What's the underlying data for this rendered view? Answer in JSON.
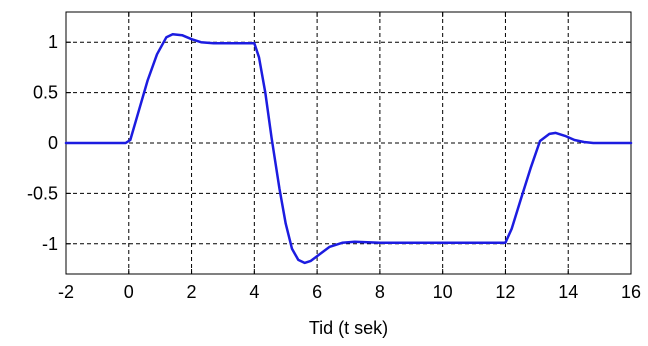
{
  "chart_data": {
    "type": "line",
    "title": "",
    "xlabel": "Tid  (t sek)",
    "ylabel": "",
    "xlim": [
      -2,
      16
    ],
    "ylim": [
      -1.3,
      1.3
    ],
    "grid": true,
    "xticks": [
      -2,
      0,
      2,
      4,
      6,
      8,
      10,
      12,
      14,
      16
    ],
    "yticks": [
      -1,
      -0.5,
      0,
      0.5,
      1
    ],
    "xtick_labels": [
      "-2",
      "0",
      "2",
      "4",
      "6",
      "8",
      "10",
      "12",
      "14",
      "16"
    ],
    "ytick_labels": [
      "-1",
      "-0.5",
      "0",
      "0.5",
      "1"
    ],
    "line_color": "#1c1ce0",
    "series": [
      {
        "x": [
          -2,
          -0.1,
          0.05,
          0.3,
          0.6,
          0.9,
          1.2,
          1.4,
          1.7,
          2.0,
          2.3,
          2.7,
          3.0,
          3.5,
          4.0,
          4.15,
          4.35,
          4.55,
          4.8,
          5.0,
          5.2,
          5.4,
          5.6,
          5.8,
          6.1,
          6.4,
          6.8,
          7.2,
          8,
          9,
          10,
          11,
          12.0,
          12.2,
          12.5,
          12.8,
          13.1,
          13.4,
          13.6,
          13.9,
          14.2,
          14.5,
          14.8,
          15.3,
          16
        ],
        "y": [
          0,
          0,
          0.03,
          0.3,
          0.62,
          0.88,
          1.05,
          1.08,
          1.07,
          1.03,
          1.0,
          0.99,
          0.99,
          0.99,
          0.99,
          0.85,
          0.5,
          0.05,
          -0.45,
          -0.8,
          -1.05,
          -1.16,
          -1.19,
          -1.17,
          -1.1,
          -1.03,
          -0.99,
          -0.98,
          -0.99,
          -0.99,
          -0.99,
          -0.99,
          -0.99,
          -0.85,
          -0.55,
          -0.25,
          0.02,
          0.09,
          0.1,
          0.07,
          0.03,
          0.01,
          0.0,
          0,
          0
        ]
      }
    ]
  }
}
